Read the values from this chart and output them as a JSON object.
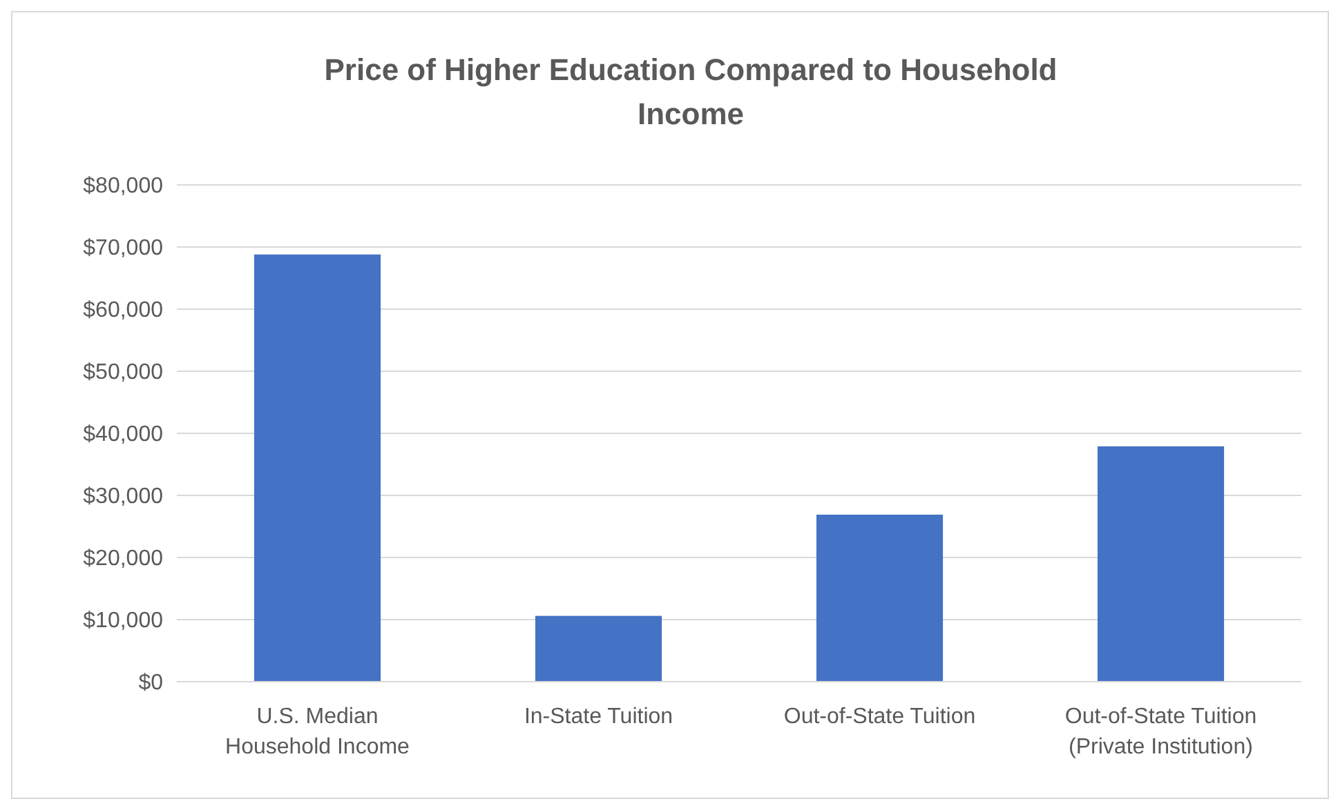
{
  "chart_data": {
    "type": "bar",
    "title": "Price of Higher Education Compared to Household Income",
    "categories": [
      "U.S. Median Household Income",
      "In-State Tuition",
      "Out-of-State Tuition",
      "Out-of-State Tuition (Private Institution)"
    ],
    "values": [
      68800,
      10600,
      26900,
      37900
    ],
    "color": "#4472c4",
    "ylim": [
      0,
      80000
    ],
    "yticks": [
      {
        "value": 0,
        "label": "$0"
      },
      {
        "value": 10000,
        "label": "$10,000"
      },
      {
        "value": 20000,
        "label": "$20,000"
      },
      {
        "value": 30000,
        "label": "$30,000"
      },
      {
        "value": 40000,
        "label": "$40,000"
      },
      {
        "value": 50000,
        "label": "$50,000"
      },
      {
        "value": 60000,
        "label": "$60,000"
      },
      {
        "value": 70000,
        "label": "$70,000"
      },
      {
        "value": 80000,
        "label": "$80,000"
      }
    ],
    "grid": "y"
  }
}
